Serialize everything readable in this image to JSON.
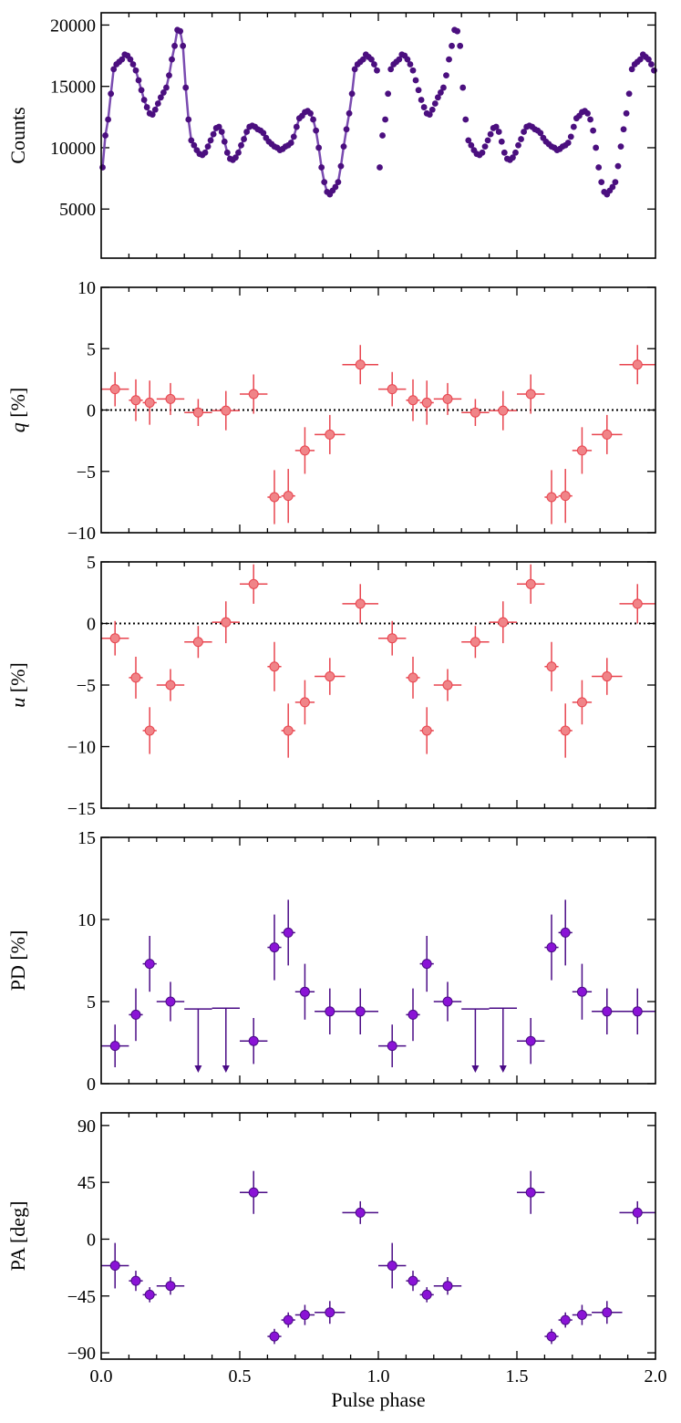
{
  "chart_data": [
    {
      "type": "line",
      "name": "pulse-profile",
      "ylabel": "Counts",
      "ylabel_italic_part": "",
      "ylabel_rest": "",
      "xlim": [
        0,
        2
      ],
      "ylim": [
        1000,
        21000
      ],
      "yticks": [
        5000,
        10000,
        15000,
        20000
      ],
      "ytick_labels": [
        "5000",
        "10000",
        "15000",
        "20000"
      ],
      "color": "#4b0f7f",
      "line_color": "#7a4bb0",
      "x": [
        0.005,
        0.015,
        0.025,
        0.035,
        0.045,
        0.055,
        0.065,
        0.075,
        0.085,
        0.095,
        0.105,
        0.115,
        0.125,
        0.135,
        0.145,
        0.155,
        0.165,
        0.175,
        0.185,
        0.195,
        0.205,
        0.215,
        0.225,
        0.235,
        0.245,
        0.255,
        0.265,
        0.275,
        0.285,
        0.295,
        0.305,
        0.315,
        0.325,
        0.335,
        0.345,
        0.355,
        0.365,
        0.375,
        0.385,
        0.395,
        0.405,
        0.415,
        0.425,
        0.435,
        0.445,
        0.455,
        0.465,
        0.475,
        0.485,
        0.495,
        0.505,
        0.515,
        0.525,
        0.535,
        0.545,
        0.555,
        0.565,
        0.575,
        0.585,
        0.595,
        0.605,
        0.615,
        0.625,
        0.635,
        0.645,
        0.655,
        0.665,
        0.675,
        0.685,
        0.695,
        0.705,
        0.715,
        0.725,
        0.735,
        0.745,
        0.755,
        0.765,
        0.775,
        0.785,
        0.795,
        0.805,
        0.815,
        0.825,
        0.835,
        0.845,
        0.855,
        0.865,
        0.875,
        0.885,
        0.895,
        0.905,
        0.915,
        0.925,
        0.935,
        0.945,
        0.955,
        0.965,
        0.975,
        0.985,
        0.995
      ],
      "y": [
        8400,
        11000,
        12300,
        14400,
        16400,
        16800,
        17000,
        17200,
        17600,
        17500,
        17200,
        16800,
        16300,
        15500,
        14700,
        13900,
        13300,
        12800,
        12700,
        13100,
        13600,
        14100,
        14500,
        14900,
        15900,
        17200,
        18300,
        19600,
        19500,
        18300,
        14900,
        12300,
        10600,
        10200,
        9800,
        9500,
        9400,
        9600,
        10100,
        10600,
        11100,
        11600,
        11700,
        11300,
        10500,
        9600,
        9100,
        9000,
        9200,
        9600,
        10200,
        10700,
        11300,
        11700,
        11800,
        11700,
        11500,
        11400,
        11200,
        10800,
        10500,
        10300,
        10100,
        10000,
        9800,
        9900,
        10100,
        10200,
        10400,
        10900,
        11700,
        12400,
        12600,
        12900,
        13000,
        12800,
        12300,
        11400,
        10000,
        8400,
        7200,
        6400,
        6200,
        6500,
        6800,
        7200,
        8500,
        10100,
        11500,
        12800,
        14400,
        16400,
        16800,
        17000,
        17200,
        17600,
        17400,
        17200,
        16800,
        16300
      ]
    },
    {
      "type": "scatter",
      "name": "q",
      "ylabel_italic_part": "q",
      "ylabel_rest": " [%]",
      "xlim": [
        0,
        2
      ],
      "ylim": [
        -10,
        10
      ],
      "yticks": [
        -10,
        -5,
        0,
        5,
        10
      ],
      "ytick_labels": [
        "−10",
        "−5",
        "0",
        "5",
        "10"
      ],
      "zero_line": true,
      "color": "#e8454f",
      "fill": "#f08488",
      "points": [
        {
          "x": 0.05,
          "xerr": 0.05,
          "y": 1.7,
          "yerr": 1.4
        },
        {
          "x": 0.125,
          "xerr": 0.025,
          "y": 0.8,
          "yerr": 1.7
        },
        {
          "x": 0.175,
          "xerr": 0.025,
          "y": 0.6,
          "yerr": 1.8
        },
        {
          "x": 0.25,
          "xerr": 0.05,
          "y": 0.9,
          "yerr": 1.3
        },
        {
          "x": 0.35,
          "xerr": 0.05,
          "y": -0.2,
          "yerr": 1.1
        },
        {
          "x": 0.45,
          "xerr": 0.05,
          "y": -0.05,
          "yerr": 1.6
        },
        {
          "x": 0.55,
          "xerr": 0.05,
          "y": 1.3,
          "yerr": 1.6
        },
        {
          "x": 0.625,
          "xerr": 0.025,
          "y": -7.1,
          "yerr": 2.2
        },
        {
          "x": 0.675,
          "xerr": 0.025,
          "y": -7.0,
          "yerr": 2.2
        },
        {
          "x": 0.735,
          "xerr": 0.035,
          "y": -3.3,
          "yerr": 1.9
        },
        {
          "x": 0.825,
          "xerr": 0.055,
          "y": -2.0,
          "yerr": 1.6
        },
        {
          "x": 0.935,
          "xerr": 0.065,
          "y": 3.7,
          "yerr": 1.6
        },
        {
          "x": 1.05,
          "xerr": 0.05,
          "y": 1.7,
          "yerr": 1.4
        },
        {
          "x": 1.125,
          "xerr": 0.025,
          "y": 0.8,
          "yerr": 1.7
        },
        {
          "x": 1.175,
          "xerr": 0.025,
          "y": 0.6,
          "yerr": 1.8
        },
        {
          "x": 1.25,
          "xerr": 0.05,
          "y": 0.9,
          "yerr": 1.3
        },
        {
          "x": 1.35,
          "xerr": 0.05,
          "y": -0.2,
          "yerr": 1.1
        },
        {
          "x": 1.45,
          "xerr": 0.05,
          "y": -0.05,
          "yerr": 1.6
        },
        {
          "x": 1.55,
          "xerr": 0.05,
          "y": 1.3,
          "yerr": 1.6
        },
        {
          "x": 1.625,
          "xerr": 0.025,
          "y": -7.1,
          "yerr": 2.2
        },
        {
          "x": 1.675,
          "xerr": 0.025,
          "y": -7.0,
          "yerr": 2.2
        },
        {
          "x": 1.735,
          "xerr": 0.035,
          "y": -3.3,
          "yerr": 1.9
        },
        {
          "x": 1.825,
          "xerr": 0.055,
          "y": -2.0,
          "yerr": 1.6
        },
        {
          "x": 1.935,
          "xerr": 0.065,
          "y": 3.7,
          "yerr": 1.6
        }
      ]
    },
    {
      "type": "scatter",
      "name": "u",
      "ylabel_italic_part": "u",
      "ylabel_rest": " [%]",
      "xlim": [
        0,
        2
      ],
      "ylim": [
        -15,
        5
      ],
      "yticks": [
        -15,
        -10,
        -5,
        0,
        5
      ],
      "ytick_labels": [
        "−15",
        "−10",
        "−5",
        "0",
        "5"
      ],
      "zero_line": true,
      "color": "#e8454f",
      "fill": "#f08488",
      "points": [
        {
          "x": 0.05,
          "xerr": 0.05,
          "y": -1.2,
          "yerr": 1.4
        },
        {
          "x": 0.125,
          "xerr": 0.025,
          "y": -4.4,
          "yerr": 1.7
        },
        {
          "x": 0.175,
          "xerr": 0.025,
          "y": -8.7,
          "yerr": 1.9
        },
        {
          "x": 0.25,
          "xerr": 0.05,
          "y": -5.0,
          "yerr": 1.3
        },
        {
          "x": 0.35,
          "xerr": 0.05,
          "y": -1.5,
          "yerr": 1.3
        },
        {
          "x": 0.45,
          "xerr": 0.05,
          "y": 0.1,
          "yerr": 1.7
        },
        {
          "x": 0.55,
          "xerr": 0.05,
          "y": 3.2,
          "yerr": 1.6
        },
        {
          "x": 0.625,
          "xerr": 0.025,
          "y": -3.5,
          "yerr": 2.0
        },
        {
          "x": 0.675,
          "xerr": 0.025,
          "y": -8.7,
          "yerr": 2.2
        },
        {
          "x": 0.735,
          "xerr": 0.035,
          "y": -6.4,
          "yerr": 1.8
        },
        {
          "x": 0.825,
          "xerr": 0.055,
          "y": -4.3,
          "yerr": 1.5
        },
        {
          "x": 0.935,
          "xerr": 0.065,
          "y": 1.6,
          "yerr": 1.6
        },
        {
          "x": 1.05,
          "xerr": 0.05,
          "y": -1.2,
          "yerr": 1.4
        },
        {
          "x": 1.125,
          "xerr": 0.025,
          "y": -4.4,
          "yerr": 1.7
        },
        {
          "x": 1.175,
          "xerr": 0.025,
          "y": -8.7,
          "yerr": 1.9
        },
        {
          "x": 1.25,
          "xerr": 0.05,
          "y": -5.0,
          "yerr": 1.3
        },
        {
          "x": 1.35,
          "xerr": 0.05,
          "y": -1.5,
          "yerr": 1.3
        },
        {
          "x": 1.45,
          "xerr": 0.05,
          "y": 0.1,
          "yerr": 1.7
        },
        {
          "x": 1.55,
          "xerr": 0.05,
          "y": 3.2,
          "yerr": 1.6
        },
        {
          "x": 1.625,
          "xerr": 0.025,
          "y": -3.5,
          "yerr": 2.0
        },
        {
          "x": 1.675,
          "xerr": 0.025,
          "y": -8.7,
          "yerr": 2.2
        },
        {
          "x": 1.735,
          "xerr": 0.035,
          "y": -6.4,
          "yerr": 1.8
        },
        {
          "x": 1.825,
          "xerr": 0.055,
          "y": -4.3,
          "yerr": 1.5
        },
        {
          "x": 1.935,
          "xerr": 0.065,
          "y": 1.6,
          "yerr": 1.6
        }
      ]
    },
    {
      "type": "scatter",
      "name": "pd",
      "ylabel_italic_part": "",
      "ylabel_rest": "PD [%]",
      "xlim": [
        0,
        2
      ],
      "ylim": [
        0,
        15
      ],
      "yticks": [
        0,
        5,
        10,
        15
      ],
      "ytick_labels": [
        "0",
        "5",
        "10",
        "15"
      ],
      "zero_line": false,
      "color": "#4a0b86",
      "fill": "#8a13d6",
      "points": [
        {
          "x": 0.05,
          "xerr": 0.05,
          "y": 2.3,
          "yerr": 1.3
        },
        {
          "x": 0.125,
          "xerr": 0.025,
          "y": 4.2,
          "yerr": 1.6
        },
        {
          "x": 0.175,
          "xerr": 0.025,
          "y": 7.3,
          "yerr": 1.7
        },
        {
          "x": 0.25,
          "xerr": 0.05,
          "y": 5.0,
          "yerr": 1.2
        },
        {
          "x": 0.35,
          "xerr": 0.05,
          "y": 4.55,
          "upper_limit": true
        },
        {
          "x": 0.45,
          "xerr": 0.05,
          "y": 4.6,
          "upper_limit": true
        },
        {
          "x": 0.55,
          "xerr": 0.05,
          "y": 2.6,
          "yerr": 1.4
        },
        {
          "x": 0.625,
          "xerr": 0.025,
          "y": 8.3,
          "yerr": 2.0
        },
        {
          "x": 0.675,
          "xerr": 0.025,
          "y": 9.2,
          "yerr": 2.0
        },
        {
          "x": 0.735,
          "xerr": 0.035,
          "y": 5.6,
          "yerr": 1.7
        },
        {
          "x": 0.825,
          "xerr": 0.055,
          "y": 4.4,
          "yerr": 1.4
        },
        {
          "x": 0.935,
          "xerr": 0.065,
          "y": 4.4,
          "yerr": 1.4
        },
        {
          "x": 1.05,
          "xerr": 0.05,
          "y": 2.3,
          "yerr": 1.3
        },
        {
          "x": 1.125,
          "xerr": 0.025,
          "y": 4.2,
          "yerr": 1.6
        },
        {
          "x": 1.175,
          "xerr": 0.025,
          "y": 7.3,
          "yerr": 1.7
        },
        {
          "x": 1.25,
          "xerr": 0.05,
          "y": 5.0,
          "yerr": 1.2
        },
        {
          "x": 1.35,
          "xerr": 0.05,
          "y": 4.55,
          "upper_limit": true
        },
        {
          "x": 1.45,
          "xerr": 0.05,
          "y": 4.6,
          "upper_limit": true
        },
        {
          "x": 1.55,
          "xerr": 0.05,
          "y": 2.6,
          "yerr": 1.4
        },
        {
          "x": 1.625,
          "xerr": 0.025,
          "y": 8.3,
          "yerr": 2.0
        },
        {
          "x": 1.675,
          "xerr": 0.025,
          "y": 9.2,
          "yerr": 2.0
        },
        {
          "x": 1.735,
          "xerr": 0.035,
          "y": 5.6,
          "yerr": 1.7
        },
        {
          "x": 1.825,
          "xerr": 0.055,
          "y": 4.4,
          "yerr": 1.4
        },
        {
          "x": 1.935,
          "xerr": 0.065,
          "y": 4.4,
          "yerr": 1.4
        }
      ]
    },
    {
      "type": "scatter",
      "name": "pa",
      "ylabel_italic_part": "",
      "ylabel_rest": "PA [deg]",
      "xlim": [
        0,
        2
      ],
      "ylim": [
        -95,
        100
      ],
      "yticks": [
        -90,
        -45,
        0,
        45,
        90
      ],
      "ytick_labels": [
        "−90",
        "−45",
        "0",
        "45",
        "90"
      ],
      "zero_line": false,
      "xlabel": "Pulse phase",
      "xticks": [
        0,
        0.5,
        1,
        1.5,
        2
      ],
      "xtick_labels": [
        "0.0",
        "0.5",
        "1.0",
        "1.5",
        "2.0"
      ],
      "color": "#4a0b86",
      "fill": "#8a13d6",
      "points": [
        {
          "x": 0.05,
          "xerr": 0.05,
          "y": -21,
          "yerr": 18
        },
        {
          "x": 0.125,
          "xerr": 0.025,
          "y": -33,
          "yerr": 8
        },
        {
          "x": 0.175,
          "xerr": 0.025,
          "y": -44,
          "yerr": 6
        },
        {
          "x": 0.25,
          "xerr": 0.05,
          "y": -37,
          "yerr": 7
        },
        {
          "x": 0.55,
          "xerr": 0.05,
          "y": 37,
          "yerr": 17
        },
        {
          "x": 0.625,
          "xerr": 0.025,
          "y": -77,
          "yerr": 6
        },
        {
          "x": 0.675,
          "xerr": 0.025,
          "y": -64,
          "yerr": 6
        },
        {
          "x": 0.735,
          "xerr": 0.035,
          "y": -60,
          "yerr": 8
        },
        {
          "x": 0.825,
          "xerr": 0.055,
          "y": -58,
          "yerr": 9
        },
        {
          "x": 0.935,
          "xerr": 0.065,
          "y": 21,
          "yerr": 9
        },
        {
          "x": 1.05,
          "xerr": 0.05,
          "y": -21,
          "yerr": 18
        },
        {
          "x": 1.125,
          "xerr": 0.025,
          "y": -33,
          "yerr": 8
        },
        {
          "x": 1.175,
          "xerr": 0.025,
          "y": -44,
          "yerr": 6
        },
        {
          "x": 1.25,
          "xerr": 0.05,
          "y": -37,
          "yerr": 7
        },
        {
          "x": 1.55,
          "xerr": 0.05,
          "y": 37,
          "yerr": 17
        },
        {
          "x": 1.625,
          "xerr": 0.025,
          "y": -77,
          "yerr": 6
        },
        {
          "x": 1.675,
          "xerr": 0.025,
          "y": -64,
          "yerr": 6
        },
        {
          "x": 1.735,
          "xerr": 0.035,
          "y": -60,
          "yerr": 8
        },
        {
          "x": 1.825,
          "xerr": 0.055,
          "y": -58,
          "yerr": 9
        },
        {
          "x": 1.935,
          "xerr": 0.065,
          "y": 21,
          "yerr": 9
        }
      ]
    }
  ]
}
